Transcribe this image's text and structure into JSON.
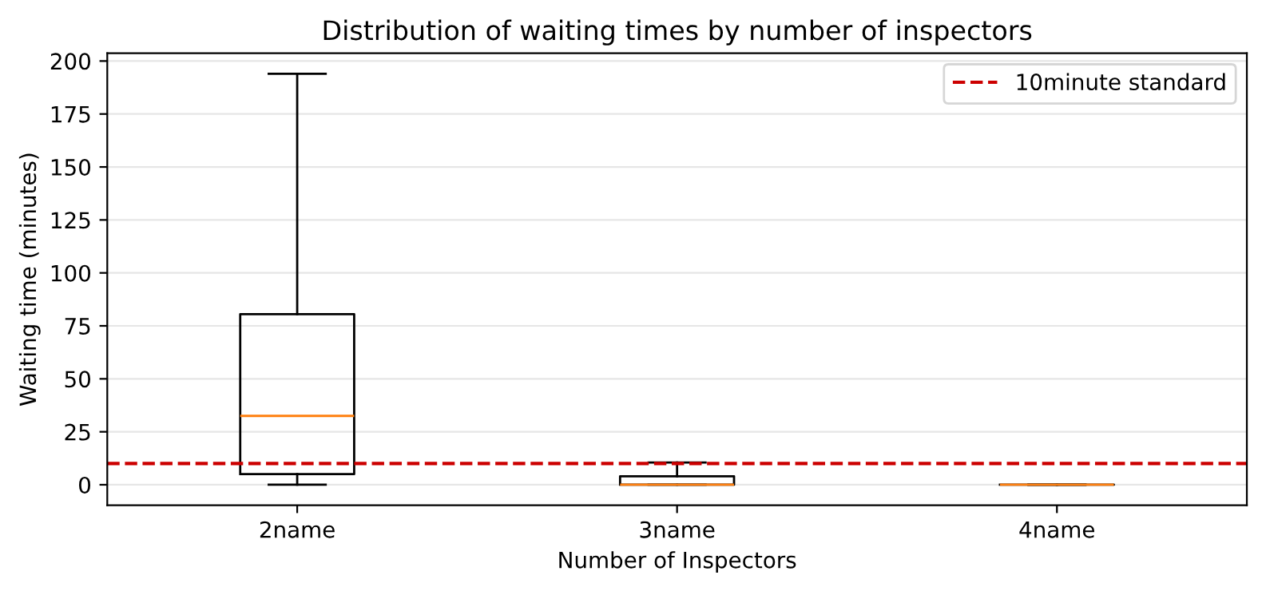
{
  "chart_data": {
    "type": "box",
    "title": "Distribution of waiting times by number of inspectors",
    "xlabel": "Number of Inspectors",
    "ylabel": "Waiting time (minutes)",
    "categories": [
      "2name",
      "3name",
      "4name"
    ],
    "boxes": [
      {
        "low": 0,
        "q1": 5,
        "median": 32.5,
        "q3": 80.5,
        "high": 194
      },
      {
        "low": 0,
        "q1": 0,
        "median": 0,
        "q3": 4,
        "high": 10.5
      },
      {
        "low": 0,
        "q1": 0,
        "median": 0,
        "q3": 0,
        "high": 0
      }
    ],
    "ylim": [
      -9.7,
      203.7
    ],
    "yticks": [
      0,
      25,
      50,
      75,
      100,
      125,
      150,
      175,
      200
    ],
    "ref_lines": [
      {
        "axis": "y",
        "value": 10,
        "label": "10minute standard",
        "color": "#cc0000",
        "line_style": "dashed"
      }
    ],
    "grid": "y",
    "legend": "top right"
  }
}
